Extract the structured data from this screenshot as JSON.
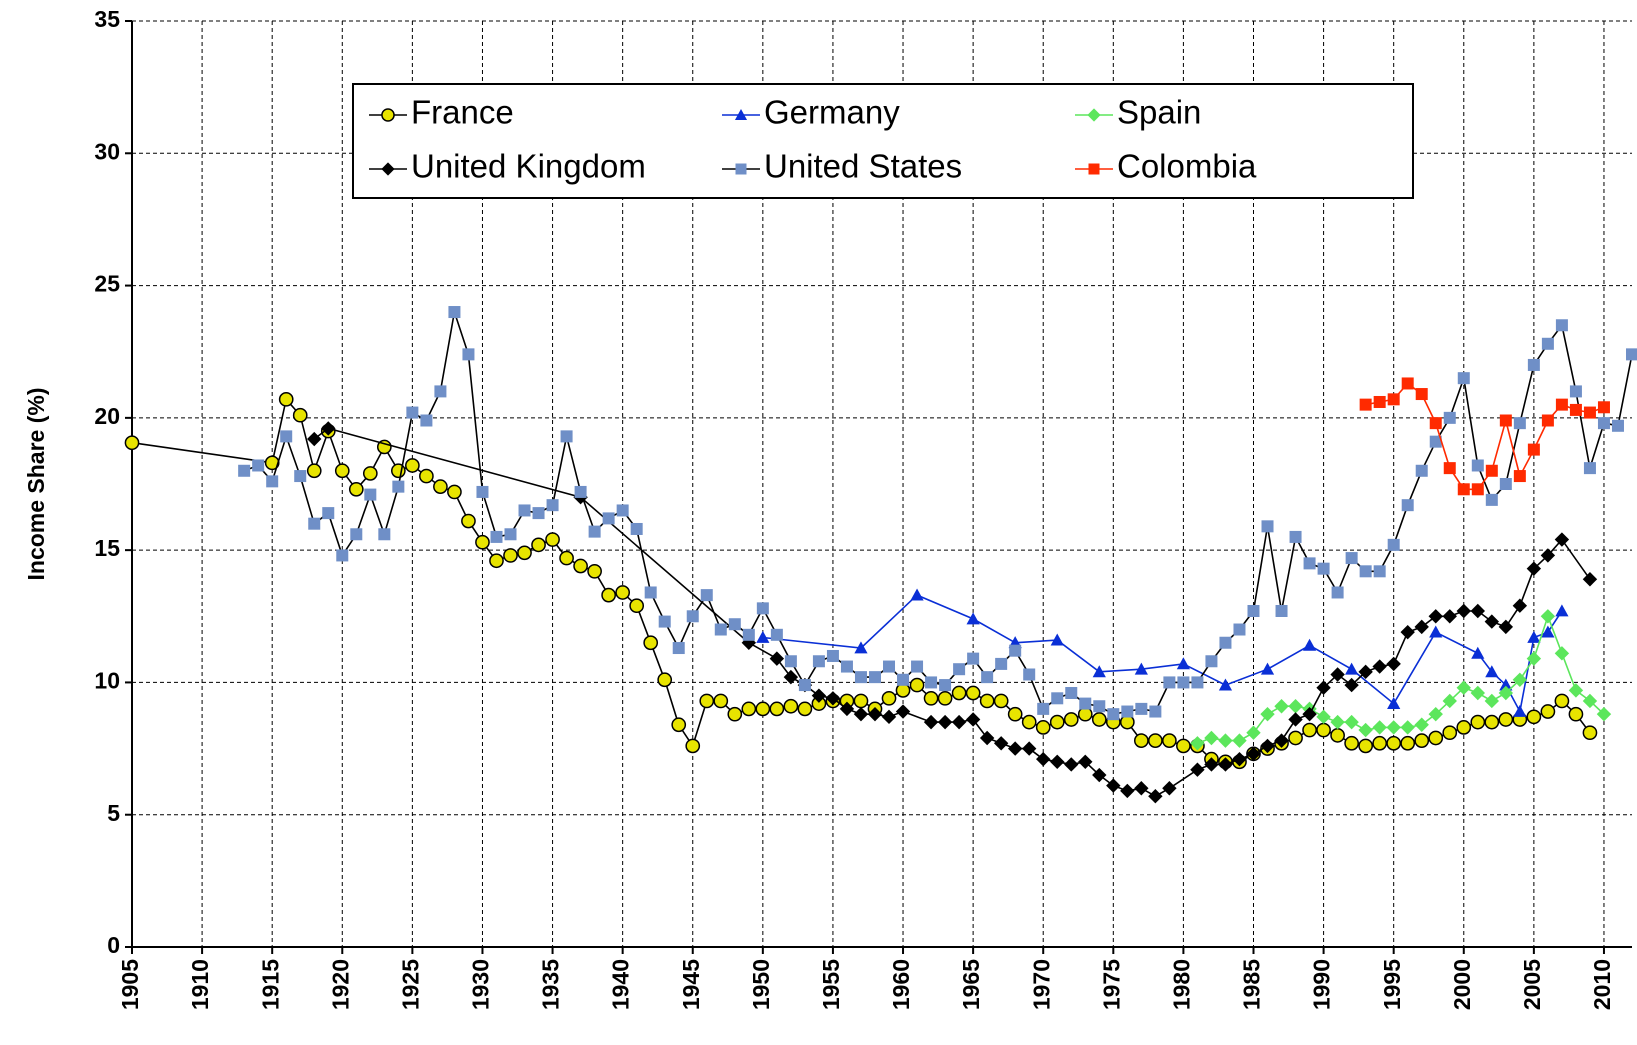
{
  "chart_data": {
    "type": "line",
    "y_label": "Income Share (%)",
    "xlim": [
      1905,
      2012
    ],
    "ylim": [
      0,
      35
    ],
    "xticks": [
      1905,
      1910,
      1915,
      1920,
      1925,
      1930,
      1935,
      1940,
      1945,
      1950,
      1955,
      1960,
      1965,
      1970,
      1975,
      1980,
      1985,
      1990,
      1995,
      2000,
      2005,
      2010
    ],
    "yticks": [
      0,
      5,
      10,
      15,
      20,
      25,
      30,
      35
    ],
    "grid": true,
    "legend": "upper center",
    "series": [
      {
        "name": "France",
        "color": "#e8e400",
        "line_color": "#000000",
        "marker": "circle",
        "x": [
          1905,
          1915,
          1916,
          1917,
          1918,
          1919,
          1920,
          1921,
          1922,
          1923,
          1924,
          1925,
          1926,
          1927,
          1928,
          1929,
          1930,
          1931,
          1932,
          1933,
          1934,
          1935,
          1936,
          1937,
          1938,
          1939,
          1940,
          1941,
          1942,
          1943,
          1944,
          1945,
          1946,
          1947,
          1948,
          1949,
          1950,
          1951,
          1952,
          1953,
          1954,
          1955,
          1956,
          1957,
          1958,
          1959,
          1960,
          1961,
          1962,
          1963,
          1964,
          1965,
          1966,
          1967,
          1968,
          1969,
          1970,
          1971,
          1972,
          1973,
          1974,
          1975,
          1976,
          1977,
          1978,
          1979,
          1980,
          1981,
          1982,
          1983,
          1984,
          1985,
          1986,
          1987,
          1988,
          1989,
          1990,
          1991,
          1992,
          1993,
          1994,
          1995,
          1996,
          1997,
          1998,
          1999,
          2000,
          2001,
          2002,
          2003,
          2004,
          2005,
          2006,
          2007,
          2008,
          2009
        ],
        "values": [
          19.06,
          18.3,
          20.7,
          20.1,
          18.0,
          19.5,
          18.0,
          17.3,
          17.9,
          18.9,
          18.0,
          18.2,
          17.8,
          17.4,
          17.2,
          16.1,
          15.3,
          14.6,
          14.8,
          14.9,
          15.2,
          15.4,
          14.7,
          14.4,
          14.2,
          13.3,
          13.4,
          12.9,
          11.5,
          10.1,
          8.4,
          7.6,
          9.3,
          9.3,
          8.8,
          9.0,
          9.0,
          9.0,
          9.1,
          9.0,
          9.2,
          9.3,
          9.3,
          9.3,
          9.0,
          9.4,
          9.7,
          9.9,
          9.4,
          9.4,
          9.6,
          9.6,
          9.3,
          9.3,
          8.8,
          8.5,
          8.3,
          8.5,
          8.6,
          8.8,
          8.6,
          8.5,
          8.5,
          7.8,
          7.8,
          7.8,
          7.6,
          7.6,
          7.1,
          7.0,
          7.0,
          7.3,
          7.5,
          7.7,
          7.9,
          8.2,
          8.2,
          8.0,
          7.7,
          7.6,
          7.7,
          7.7,
          7.7,
          7.8,
          7.9,
          8.1,
          8.3,
          8.5,
          8.5,
          8.6,
          8.6,
          8.7,
          8.9,
          9.3,
          8.8,
          8.1
        ]
      },
      {
        "name": "Germany",
        "color": "#0a2fd6",
        "line_color": "#0a2fd6",
        "marker": "triangle",
        "x": [
          1950,
          1957,
          1961,
          1965,
          1968,
          1971,
          1974,
          1977,
          1980,
          1983,
          1986,
          1989,
          1992,
          1995,
          1998,
          2001,
          2002,
          2003,
          2004,
          2005,
          2006,
          2007
        ],
        "values": [
          11.7,
          11.3,
          13.3,
          12.4,
          11.5,
          11.6,
          10.4,
          10.5,
          10.7,
          9.9,
          10.5,
          11.4,
          10.5,
          9.2,
          11.9,
          11.1,
          10.4,
          9.9,
          8.9,
          11.7,
          11.9,
          12.7
        ]
      },
      {
        "name": "Spain",
        "color": "#5ce65c",
        "line_color": "#5ce65c",
        "marker": "diamond",
        "x": [
          1981,
          1982,
          1983,
          1984,
          1985,
          1986,
          1987,
          1988,
          1989,
          1990,
          1991,
          1992,
          1993,
          1994,
          1995,
          1996,
          1997,
          1998,
          1999,
          2000,
          2001,
          2002,
          2003,
          2004,
          2005,
          2006,
          2007,
          2008,
          2009,
          2010
        ],
        "values": [
          7.7,
          7.9,
          7.8,
          7.8,
          8.1,
          8.8,
          9.1,
          9.1,
          9.0,
          8.7,
          8.5,
          8.5,
          8.2,
          8.3,
          8.3,
          8.3,
          8.4,
          8.8,
          9.3,
          9.8,
          9.6,
          9.3,
          9.6,
          10.1,
          10.9,
          12.5,
          11.1,
          9.7,
          9.3,
          8.8
        ]
      },
      {
        "name": "United Kingdom",
        "color": "#000000",
        "line_color": "#000000",
        "marker": "diamond",
        "x": [
          1918,
          1919,
          1937,
          1949,
          1951,
          1952,
          1953,
          1954,
          1955,
          1956,
          1957,
          1958,
          1959,
          1960,
          1962,
          1963,
          1964,
          1965,
          1966,
          1967,
          1968,
          1969,
          1970,
          1971,
          1972,
          1973,
          1974,
          1975,
          1976,
          1977,
          1978,
          1979,
          1981,
          1982,
          1983,
          1984,
          1985,
          1986,
          1987,
          1988,
          1989,
          1990,
          1991,
          1992,
          1993,
          1994,
          1995,
          1996,
          1997,
          1998,
          1999,
          2000,
          2001,
          2002,
          2003,
          2004,
          2005,
          2006,
          2007,
          2009
        ],
        "values": [
          19.2,
          19.6,
          17.0,
          11.5,
          10.9,
          10.2,
          9.9,
          9.5,
          9.4,
          9.0,
          8.8,
          8.8,
          8.7,
          8.9,
          8.5,
          8.5,
          8.5,
          8.6,
          7.9,
          7.7,
          7.5,
          7.5,
          7.1,
          7.0,
          6.9,
          7.0,
          6.5,
          6.1,
          5.9,
          6.0,
          5.7,
          6.0,
          6.7,
          6.9,
          6.9,
          7.1,
          7.3,
          7.6,
          7.8,
          8.6,
          8.8,
          9.8,
          10.3,
          9.9,
          10.4,
          10.6,
          10.7,
          11.9,
          12.1,
          12.5,
          12.5,
          12.7,
          12.7,
          12.3,
          12.1,
          12.9,
          14.3,
          14.8,
          15.4,
          13.9
        ]
      },
      {
        "name": "United States",
        "color": "#6f8fc7",
        "line_color": "#000000",
        "marker": "square",
        "x": [
          1913,
          1914,
          1915,
          1916,
          1917,
          1918,
          1919,
          1920,
          1921,
          1922,
          1923,
          1924,
          1925,
          1926,
          1927,
          1928,
          1929,
          1930,
          1931,
          1932,
          1933,
          1934,
          1935,
          1936,
          1937,
          1938,
          1939,
          1940,
          1941,
          1942,
          1943,
          1944,
          1945,
          1946,
          1947,
          1948,
          1949,
          1950,
          1951,
          1952,
          1953,
          1954,
          1955,
          1956,
          1957,
          1958,
          1959,
          1960,
          1961,
          1962,
          1963,
          1964,
          1965,
          1966,
          1967,
          1968,
          1969,
          1970,
          1971,
          1972,
          1973,
          1974,
          1975,
          1976,
          1977,
          1978,
          1979,
          1980,
          1981,
          1982,
          1983,
          1984,
          1985,
          1986,
          1987,
          1988,
          1989,
          1990,
          1991,
          1992,
          1993,
          1994,
          1995,
          1996,
          1997,
          1998,
          1999,
          2000,
          2001,
          2002,
          2003,
          2004,
          2005,
          2006,
          2007,
          2008,
          2009,
          2010,
          2011,
          2012
        ],
        "values": [
          18.0,
          18.2,
          17.6,
          19.3,
          17.8,
          16.0,
          16.4,
          14.8,
          15.6,
          17.1,
          15.6,
          17.4,
          20.2,
          19.9,
          21.0,
          24.0,
          22.4,
          17.2,
          15.5,
          15.6,
          16.5,
          16.4,
          16.7,
          19.3,
          17.2,
          15.7,
          16.2,
          16.5,
          15.8,
          13.4,
          12.3,
          11.3,
          12.5,
          13.3,
          12.0,
          12.2,
          11.8,
          12.8,
          11.8,
          10.8,
          9.9,
          10.8,
          11.0,
          10.6,
          10.2,
          10.2,
          10.6,
          10.1,
          10.6,
          10.0,
          9.9,
          10.5,
          10.9,
          10.2,
          10.7,
          11.2,
          10.3,
          9.0,
          9.4,
          9.6,
          9.2,
          9.1,
          8.8,
          8.9,
          9.0,
          8.9,
          10.0,
          10.0,
          10.0,
          10.8,
          11.5,
          12.0,
          12.7,
          15.9,
          12.7,
          15.5,
          14.5,
          14.3,
          13.4,
          14.7,
          14.2,
          14.2,
          15.2,
          16.7,
          18.0,
          19.1,
          20.0,
          21.5,
          18.2,
          16.9,
          17.5,
          19.8,
          22.0,
          22.8,
          23.5,
          21.0,
          18.1,
          19.8,
          19.7,
          22.4
        ]
      },
      {
        "name": "Colombia",
        "color": "#ff2a00",
        "line_color": "#ff2a00",
        "marker": "square",
        "x": [
          1993,
          1994,
          1995,
          1996,
          1997,
          1998,
          1999,
          2000,
          2001,
          2002,
          2003,
          2004,
          2005,
          2006,
          2007,
          2008,
          2009,
          2010
        ],
        "values": [
          20.5,
          20.6,
          20.7,
          21.3,
          20.9,
          19.8,
          18.1,
          17.3,
          17.3,
          18.0,
          19.9,
          17.8,
          18.8,
          19.9,
          20.5,
          20.3,
          20.2,
          20.4
        ]
      }
    ]
  }
}
